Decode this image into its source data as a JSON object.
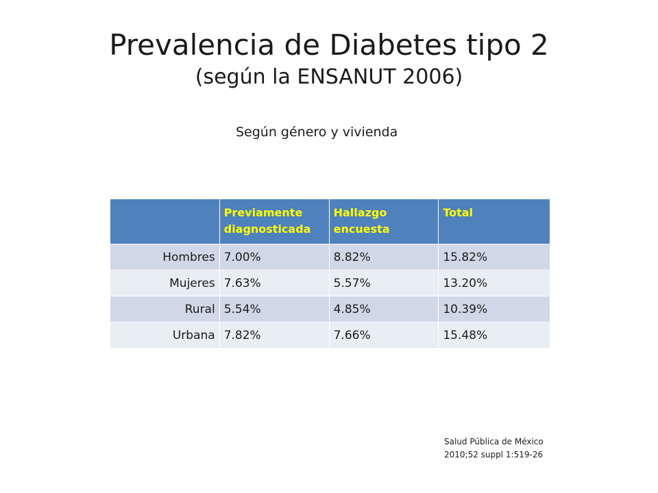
{
  "title": {
    "main": "Prevalencia de Diabetes tipo 2",
    "sub": "(según la ENSANUT 2006)"
  },
  "subtitle": "Según género y vivienda",
  "table": {
    "headers": [
      "",
      "Previamente diagnosticada",
      "Hallazgo encuesta",
      "Total"
    ],
    "rows": [
      {
        "label": "Hombres",
        "previamente": "7.00%",
        "hallazgo": "8.82%",
        "total": "15.82%"
      },
      {
        "label": "Mujeres",
        "previamente": "7.63%",
        "hallazgo": "5.57%",
        "total": "13.20%"
      },
      {
        "label": "Rural",
        "previamente": "5.54%",
        "hallazgo": "4.85%",
        "total": "10.39%"
      },
      {
        "label": "Urbana",
        "previamente": "7.82%",
        "hallazgo": "7.66%",
        "total": "15.48%"
      }
    ]
  },
  "citation": {
    "line1": "Salud Pública de México",
    "line2": "2010;52 suppl 1:519-26"
  },
  "colors": {
    "header_bg": "#4f81bd",
    "header_text": "#ffff00",
    "row_odd": "#d0d8e8",
    "row_even": "#e9edf4"
  }
}
